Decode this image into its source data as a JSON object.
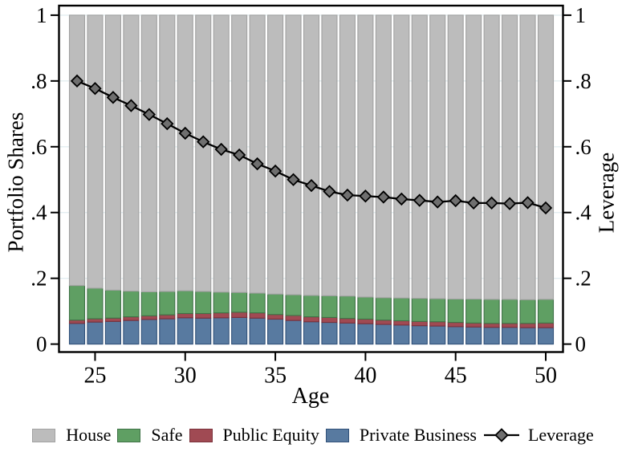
{
  "figure": {
    "x_axis_title": "Age",
    "left_axis_title": "Portfolio Shares",
    "right_axis_title": "Leverage"
  },
  "chart_data": {
    "type": "bar",
    "subtype": "stacked-bars-with-line-overlay",
    "title": "",
    "xlabel": "Age",
    "ylabel_left": "Portfolio Shares",
    "ylabel_right": "Leverage",
    "ylim": [
      0,
      1
    ],
    "yticks": [
      0,
      0.2,
      0.4,
      0.6,
      0.8,
      1
    ],
    "ytick_labels": [
      "0",
      ".2",
      ".4",
      ".6",
      ".8",
      "1"
    ],
    "xticks": [
      25,
      30,
      35,
      40,
      45,
      50
    ],
    "xtick_labels": [
      "25",
      "30",
      "35",
      "40",
      "45",
      "50"
    ],
    "grid": true,
    "legend_position": "bottom",
    "x": [
      24,
      25,
      26,
      27,
      28,
      29,
      30,
      31,
      32,
      33,
      34,
      35,
      36,
      37,
      38,
      39,
      40,
      41,
      42,
      43,
      44,
      45,
      46,
      47,
      48,
      49,
      50
    ],
    "series": [
      {
        "name": "Private Business",
        "type": "bar",
        "color": "private_business",
        "values": [
          0.063,
          0.067,
          0.069,
          0.072,
          0.075,
          0.077,
          0.08,
          0.079,
          0.08,
          0.081,
          0.079,
          0.076,
          0.072,
          0.068,
          0.066,
          0.064,
          0.062,
          0.06,
          0.058,
          0.056,
          0.055,
          0.053,
          0.052,
          0.051,
          0.051,
          0.05,
          0.05
        ]
      },
      {
        "name": "Public Equity",
        "type": "bar",
        "color": "public_equity",
        "values": [
          0.01,
          0.01,
          0.01,
          0.011,
          0.011,
          0.012,
          0.013,
          0.014,
          0.015,
          0.016,
          0.016,
          0.014,
          0.015,
          0.015,
          0.015,
          0.014,
          0.014,
          0.013,
          0.013,
          0.013,
          0.013,
          0.013,
          0.012,
          0.012,
          0.012,
          0.013,
          0.014
        ]
      },
      {
        "name": "Safe",
        "type": "bar",
        "color": "safe",
        "values": [
          0.105,
          0.093,
          0.085,
          0.078,
          0.073,
          0.071,
          0.069,
          0.067,
          0.063,
          0.06,
          0.06,
          0.062,
          0.063,
          0.065,
          0.066,
          0.068,
          0.067,
          0.068,
          0.069,
          0.07,
          0.07,
          0.071,
          0.073,
          0.073,
          0.073,
          0.072,
          0.072
        ]
      },
      {
        "name": "House",
        "type": "bar",
        "color": "house",
        "values": [
          0.822,
          0.83,
          0.836,
          0.839,
          0.841,
          0.84,
          0.838,
          0.84,
          0.842,
          0.843,
          0.845,
          0.848,
          0.85,
          0.852,
          0.853,
          0.854,
          0.857,
          0.859,
          0.86,
          0.861,
          0.862,
          0.863,
          0.863,
          0.864,
          0.864,
          0.865,
          0.864
        ]
      },
      {
        "name": "Leverage",
        "type": "line",
        "color": "leverage_marker",
        "values": [
          0.8,
          0.777,
          0.75,
          0.725,
          0.698,
          0.67,
          0.641,
          0.615,
          0.592,
          0.575,
          0.548,
          0.526,
          0.5,
          0.482,
          0.464,
          0.453,
          0.45,
          0.447,
          0.441,
          0.437,
          0.432,
          0.436,
          0.429,
          0.429,
          0.427,
          0.43,
          0.414
        ]
      }
    ]
  },
  "legend": {
    "items": [
      {
        "label": "House",
        "color": "house",
        "marker": "square"
      },
      {
        "label": "Safe",
        "color": "safe",
        "marker": "square"
      },
      {
        "label": "Public Equity",
        "color": "public_equity",
        "marker": "square"
      },
      {
        "label": "Private Business",
        "color": "private_business",
        "marker": "square"
      },
      {
        "label": "Leverage",
        "color": "leverage_marker",
        "marker": "diamond-line"
      }
    ]
  },
  "colors": {
    "house": {
      "fill": "#bcbcbc",
      "stroke": "#a2a2a2"
    },
    "safe": {
      "fill": "#5f9f63",
      "stroke": "#3f7247"
    },
    "public_equity": {
      "fill": "#a04a53",
      "stroke": "#7b313b"
    },
    "private_business": {
      "fill": "#587aa0",
      "stroke": "#315179"
    },
    "leverage_marker": {
      "fill": "#6f6f6f",
      "stroke": "#000000"
    },
    "line": "#000000",
    "grid": "#e3eef1",
    "axis": "#000000",
    "background": "#ffffff"
  }
}
